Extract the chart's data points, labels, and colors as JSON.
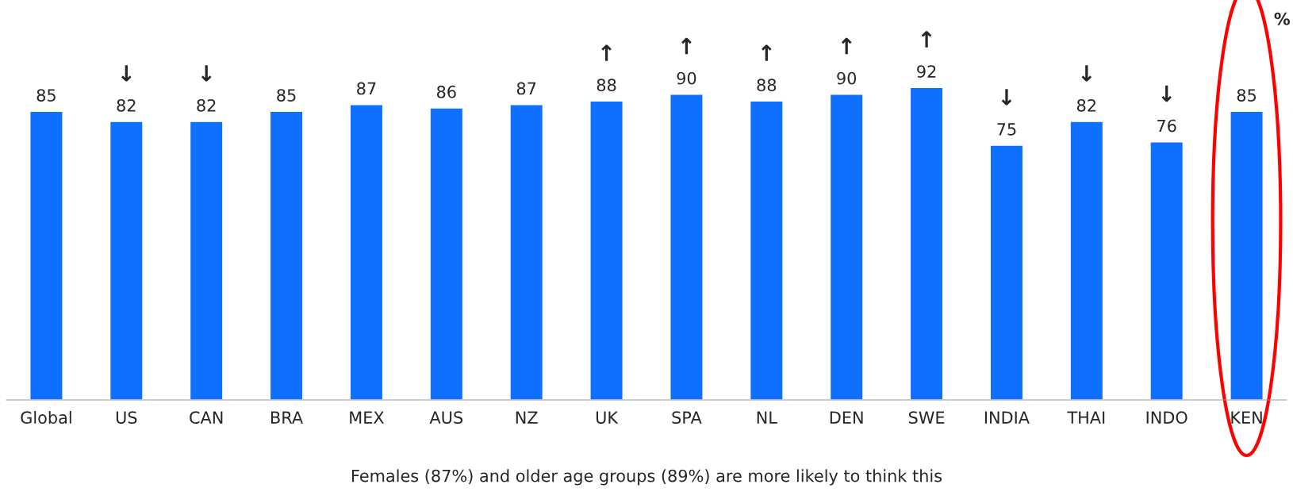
{
  "chart_data": {
    "type": "bar",
    "categories": [
      "Global",
      "US",
      "CAN",
      "BRA",
      "MEX",
      "AUS",
      "NZ",
      "UK",
      "SPA",
      "NL",
      "DEN",
      "SWE",
      "INDIA",
      "THAI",
      "INDO",
      "KEN"
    ],
    "values": [
      85,
      82,
      82,
      85,
      87,
      86,
      87,
      88,
      90,
      88,
      90,
      92,
      75,
      82,
      76,
      85
    ],
    "color": "#0f6fff",
    "data_labels": true,
    "tick_labels": "x",
    "grid": false,
    "legend": false,
    "annotations": [
      {
        "text": "↓",
        "x": "US",
        "y": 82
      },
      {
        "text": "↓",
        "x": "CAN",
        "y": 82
      },
      {
        "text": "↑",
        "x": "UK",
        "y": 88
      },
      {
        "text": "↑",
        "x": "SPA",
        "y": 90
      },
      {
        "text": "↑",
        "x": "NL",
        "y": 88
      },
      {
        "text": "↑",
        "x": "DEN",
        "y": 90
      },
      {
        "text": "↑",
        "x": "SWE",
        "y": 92
      },
      {
        "text": "↓",
        "x": "INDIA",
        "y": 75
      },
      {
        "text": "↓",
        "x": "THAI",
        "y": 82
      },
      {
        "text": "↓",
        "x": "INDO",
        "y": 76
      },
      "%",
      "Females (87%) and older age groups (89%) are more likely to think this"
    ]
  }
}
